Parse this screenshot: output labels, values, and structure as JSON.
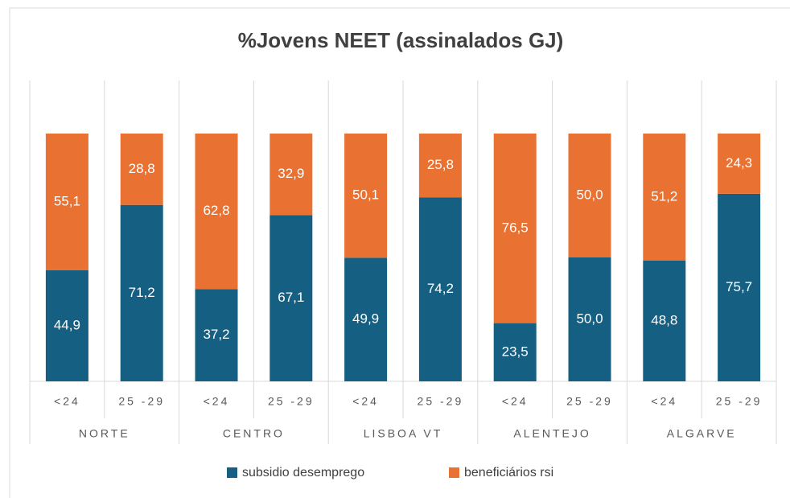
{
  "chart_data": {
    "type": "stacked_bar",
    "title": "%Jovens NEET (assinalados GJ)",
    "categories": [
      "<24",
      "25 -29",
      "<24",
      "25 -29",
      "<24",
      "25 -29",
      "<24",
      "25 -29",
      "<24",
      "25 -29"
    ],
    "groups": [
      "NORTE",
      "CENTRO",
      "LISBOA VT",
      "ALENTEJO",
      "ALGARVE"
    ],
    "series": [
      {
        "name": "subsidio desemprego",
        "color": "#156082",
        "values": [
          44.9,
          71.2,
          37.2,
          67.1,
          49.9,
          74.2,
          23.5,
          50.0,
          48.8,
          75.7
        ],
        "value_labels": [
          "44,9",
          "71,2",
          "37,2",
          "67,1",
          "49,9",
          "74,2",
          "23,5",
          "50,0",
          "48,8",
          "75,7"
        ]
      },
      {
        "name": "beneficiários rsi",
        "color": "#e97132",
        "values": [
          55.1,
          28.8,
          62.8,
          32.9,
          50.1,
          25.8,
          76.5,
          50.0,
          51.2,
          24.3
        ],
        "value_labels": [
          "55,1",
          "28,8",
          "62,8",
          "32,9",
          "50,1",
          "25,8",
          "76,5",
          "50,0",
          "51,2",
          "24,3"
        ]
      }
    ],
    "ylim": [
      0,
      100
    ]
  }
}
